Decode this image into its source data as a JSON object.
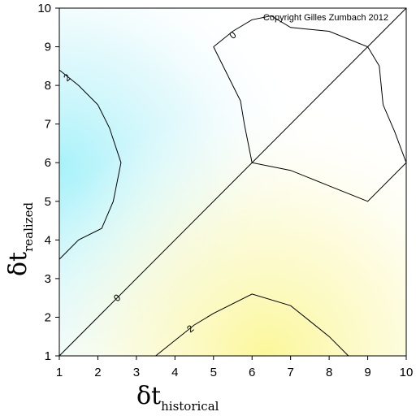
{
  "chart_data": {
    "type": "contour",
    "xlim": [
      1,
      10
    ],
    "ylim": [
      1,
      10
    ],
    "xticks": [
      "1",
      "2",
      "3",
      "4",
      "5",
      "6",
      "7",
      "8",
      "9",
      "10"
    ],
    "yticks": [
      "1",
      "2",
      "3",
      "4",
      "5",
      "6",
      "7",
      "8",
      "9",
      "10"
    ],
    "xlabel": {
      "symbol": "δt",
      "subscript": "historical"
    },
    "ylabel": {
      "symbol": "δt",
      "subscript": "realized"
    },
    "annotation": "Copyright Gilles Zumbach 2012",
    "colors": {
      "high": "#b3f4fa",
      "zero": "#ffffff",
      "low": "#fcf8a8"
    },
    "diagonal": {
      "x": [
        1,
        10
      ],
      "y": [
        1,
        10
      ]
    },
    "contours": [
      {
        "level": "2",
        "label_at": [
          1.2,
          8.2
        ],
        "x": [
          1.0,
          1.5,
          2.0,
          2.3,
          2.6,
          2.4,
          2.1,
          1.5,
          1.0
        ],
        "y": [
          8.4,
          8.0,
          7.5,
          6.9,
          6.0,
          5.0,
          4.3,
          4.0,
          3.5
        ]
      },
      {
        "level": "0",
        "label_at": [
          5.5,
          9.3
        ],
        "x": [
          5.0,
          5.5,
          6.0,
          6.5,
          7.0,
          8.0,
          9.0,
          9.3,
          9.4,
          9.7,
          10.0,
          9.0,
          8.0,
          7.0,
          6.0,
          5.8,
          5.7,
          5.6,
          5.0
        ],
        "y": [
          9.0,
          9.4,
          9.7,
          9.8,
          9.5,
          9.4,
          9.0,
          8.5,
          7.5,
          6.8,
          6.0,
          5.0,
          5.4,
          5.8,
          6.0,
          7.0,
          7.6,
          7.8,
          9.0
        ]
      },
      {
        "level": "0",
        "label_at": [
          2.5,
          2.5
        ],
        "x": [],
        "y": []
      },
      {
        "level": "2",
        "label_at": [
          4.4,
          1.7
        ],
        "x": [
          3.5,
          4.0,
          4.5,
          5.0,
          6.0,
          7.0,
          7.5,
          8.0,
          8.5
        ],
        "y": [
          1.0,
          1.4,
          1.8,
          2.1,
          2.6,
          2.3,
          1.9,
          1.5,
          1.0
        ]
      }
    ]
  }
}
